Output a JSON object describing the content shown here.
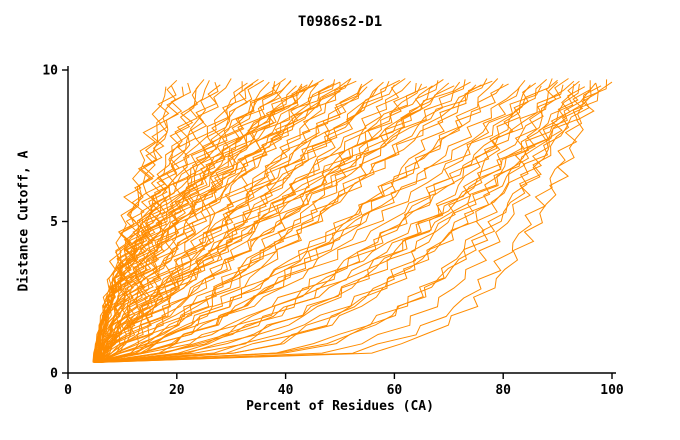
{
  "page": {
    "background": "#ffffff"
  },
  "chart_data": {
    "type": "line",
    "title": "T0986s2-D1",
    "xlabel": "Percent of Residues (CA)",
    "ylabel": "Distance Cutoff, A",
    "xlim": [
      0,
      100
    ],
    "ylim": [
      0,
      10
    ],
    "x_ticks": [
      0,
      20,
      40,
      60,
      80,
      100
    ],
    "y_ticks": [
      0,
      5,
      10
    ],
    "grid": false,
    "legend": "none",
    "line_color": "#ff8c00",
    "axis_color": "#000000",
    "curve_start": {
      "x_min": 4.6,
      "x_max": 6.3,
      "y": 0.35
    },
    "curve_top_y": 9.6,
    "curves_note": "Each curve = one model: [x_start_percent, x_percent_at_top_cutoff, shape_exponent]; cutoff rises 0.35 to ~9.6 A",
    "curves": [
      [
        5.0,
        18,
        1.3
      ],
      [
        5.5,
        20,
        1.15
      ],
      [
        4.8,
        22,
        1.4
      ],
      [
        6.0,
        24,
        1.05
      ],
      [
        5.2,
        25,
        1.25
      ],
      [
        5.8,
        27,
        1.1
      ],
      [
        4.6,
        28,
        1.35
      ],
      [
        5.4,
        30,
        1.5
      ],
      [
        6.2,
        32,
        1.0
      ],
      [
        5.0,
        34,
        1.2
      ],
      [
        5.6,
        21,
        1.45
      ],
      [
        4.9,
        26,
        1.3
      ],
      [
        5.3,
        33,
        1.55
      ],
      [
        5.7,
        19,
        1.2
      ],
      [
        5.1,
        35,
        1.8
      ],
      [
        5.9,
        37,
        1.2
      ],
      [
        4.7,
        38,
        1.6
      ],
      [
        5.5,
        40,
        1.0
      ],
      [
        6.1,
        41,
        1.9
      ],
      [
        5.0,
        43,
        1.4
      ],
      [
        5.6,
        44,
        1.1
      ],
      [
        4.8,
        45,
        1.7
      ],
      [
        5.2,
        46,
        0.95
      ],
      [
        5.8,
        48,
        1.5
      ],
      [
        6.0,
        49,
        1.25
      ],
      [
        4.9,
        50,
        1.85
      ],
      [
        5.4,
        51,
        1.05
      ],
      [
        5.7,
        52,
        1.45
      ],
      [
        5.1,
        53,
        1.65
      ],
      [
        6.3,
        54,
        0.9
      ],
      [
        5.3,
        55,
        1.3
      ],
      [
        4.6,
        36,
        1.55
      ],
      [
        5.5,
        39,
        1.9
      ],
      [
        5.0,
        42,
        1.15
      ],
      [
        5.9,
        47,
        1.75
      ],
      [
        5.2,
        50,
        0.92
      ],
      [
        5.6,
        44,
        1.38
      ],
      [
        4.8,
        52,
        1.58
      ],
      [
        6.0,
        38,
        1.28
      ],
      [
        5.4,
        46,
        1.95
      ],
      [
        5.0,
        54,
        1.08
      ],
      [
        5.7,
        41,
        1.48
      ],
      [
        5.3,
        49,
        1.22
      ],
      [
        4.9,
        43,
        1.68
      ],
      [
        5.2,
        56,
        1.1
      ],
      [
        5.8,
        58,
        0.8
      ],
      [
        4.7,
        60,
        1.25
      ],
      [
        5.5,
        62,
        0.7
      ],
      [
        6.1,
        63,
        1.0
      ],
      [
        5.0,
        65,
        0.85
      ],
      [
        5.6,
        66,
        1.2
      ],
      [
        4.8,
        68,
        0.65
      ],
      [
        5.3,
        70,
        0.95
      ],
      [
        5.9,
        71,
        1.15
      ],
      [
        5.1,
        73,
        0.75
      ],
      [
        6.2,
        74,
        1.05
      ],
      [
        4.9,
        75,
        0.6
      ],
      [
        5.4,
        77,
        0.9
      ],
      [
        5.7,
        78,
        1.28
      ],
      [
        5.0,
        80,
        0.72
      ],
      [
        5.5,
        57,
        0.98
      ],
      [
        6.0,
        61,
        1.18
      ],
      [
        4.6,
        64,
        0.68
      ],
      [
        5.2,
        67,
        1.08
      ],
      [
        5.8,
        69,
        0.78
      ],
      [
        5.1,
        72,
        1.22
      ],
      [
        5.6,
        76,
        0.88
      ],
      [
        4.8,
        79,
        0.62
      ],
      [
        5.3,
        59,
        1.02
      ],
      [
        5.0,
        81,
        0.75
      ],
      [
        5.6,
        83,
        0.5
      ],
      [
        4.8,
        84,
        0.68
      ],
      [
        5.4,
        86,
        0.42
      ],
      [
        6.0,
        87,
        0.8
      ],
      [
        5.1,
        88,
        0.55
      ],
      [
        5.7,
        90,
        0.35
      ],
      [
        4.9,
        91,
        0.62
      ],
      [
        5.3,
        92,
        0.48
      ],
      [
        5.9,
        93,
        0.72
      ],
      [
        5.2,
        94,
        0.4
      ],
      [
        5.5,
        95,
        0.58
      ],
      [
        4.7,
        96,
        0.3
      ],
      [
        6.1,
        97,
        0.52
      ],
      [
        5.0,
        98,
        0.65
      ],
      [
        5.4,
        99,
        0.45
      ],
      [
        5.8,
        100,
        0.6
      ],
      [
        5.2,
        85,
        0.33
      ],
      [
        4.9,
        89,
        0.7
      ],
      [
        5.6,
        94,
        0.28
      ],
      [
        5.0,
        93,
        0.22
      ],
      [
        5.5,
        96,
        0.2
      ],
      [
        4.8,
        90,
        0.25
      ],
      [
        5.2,
        97,
        0.18
      ]
    ]
  }
}
